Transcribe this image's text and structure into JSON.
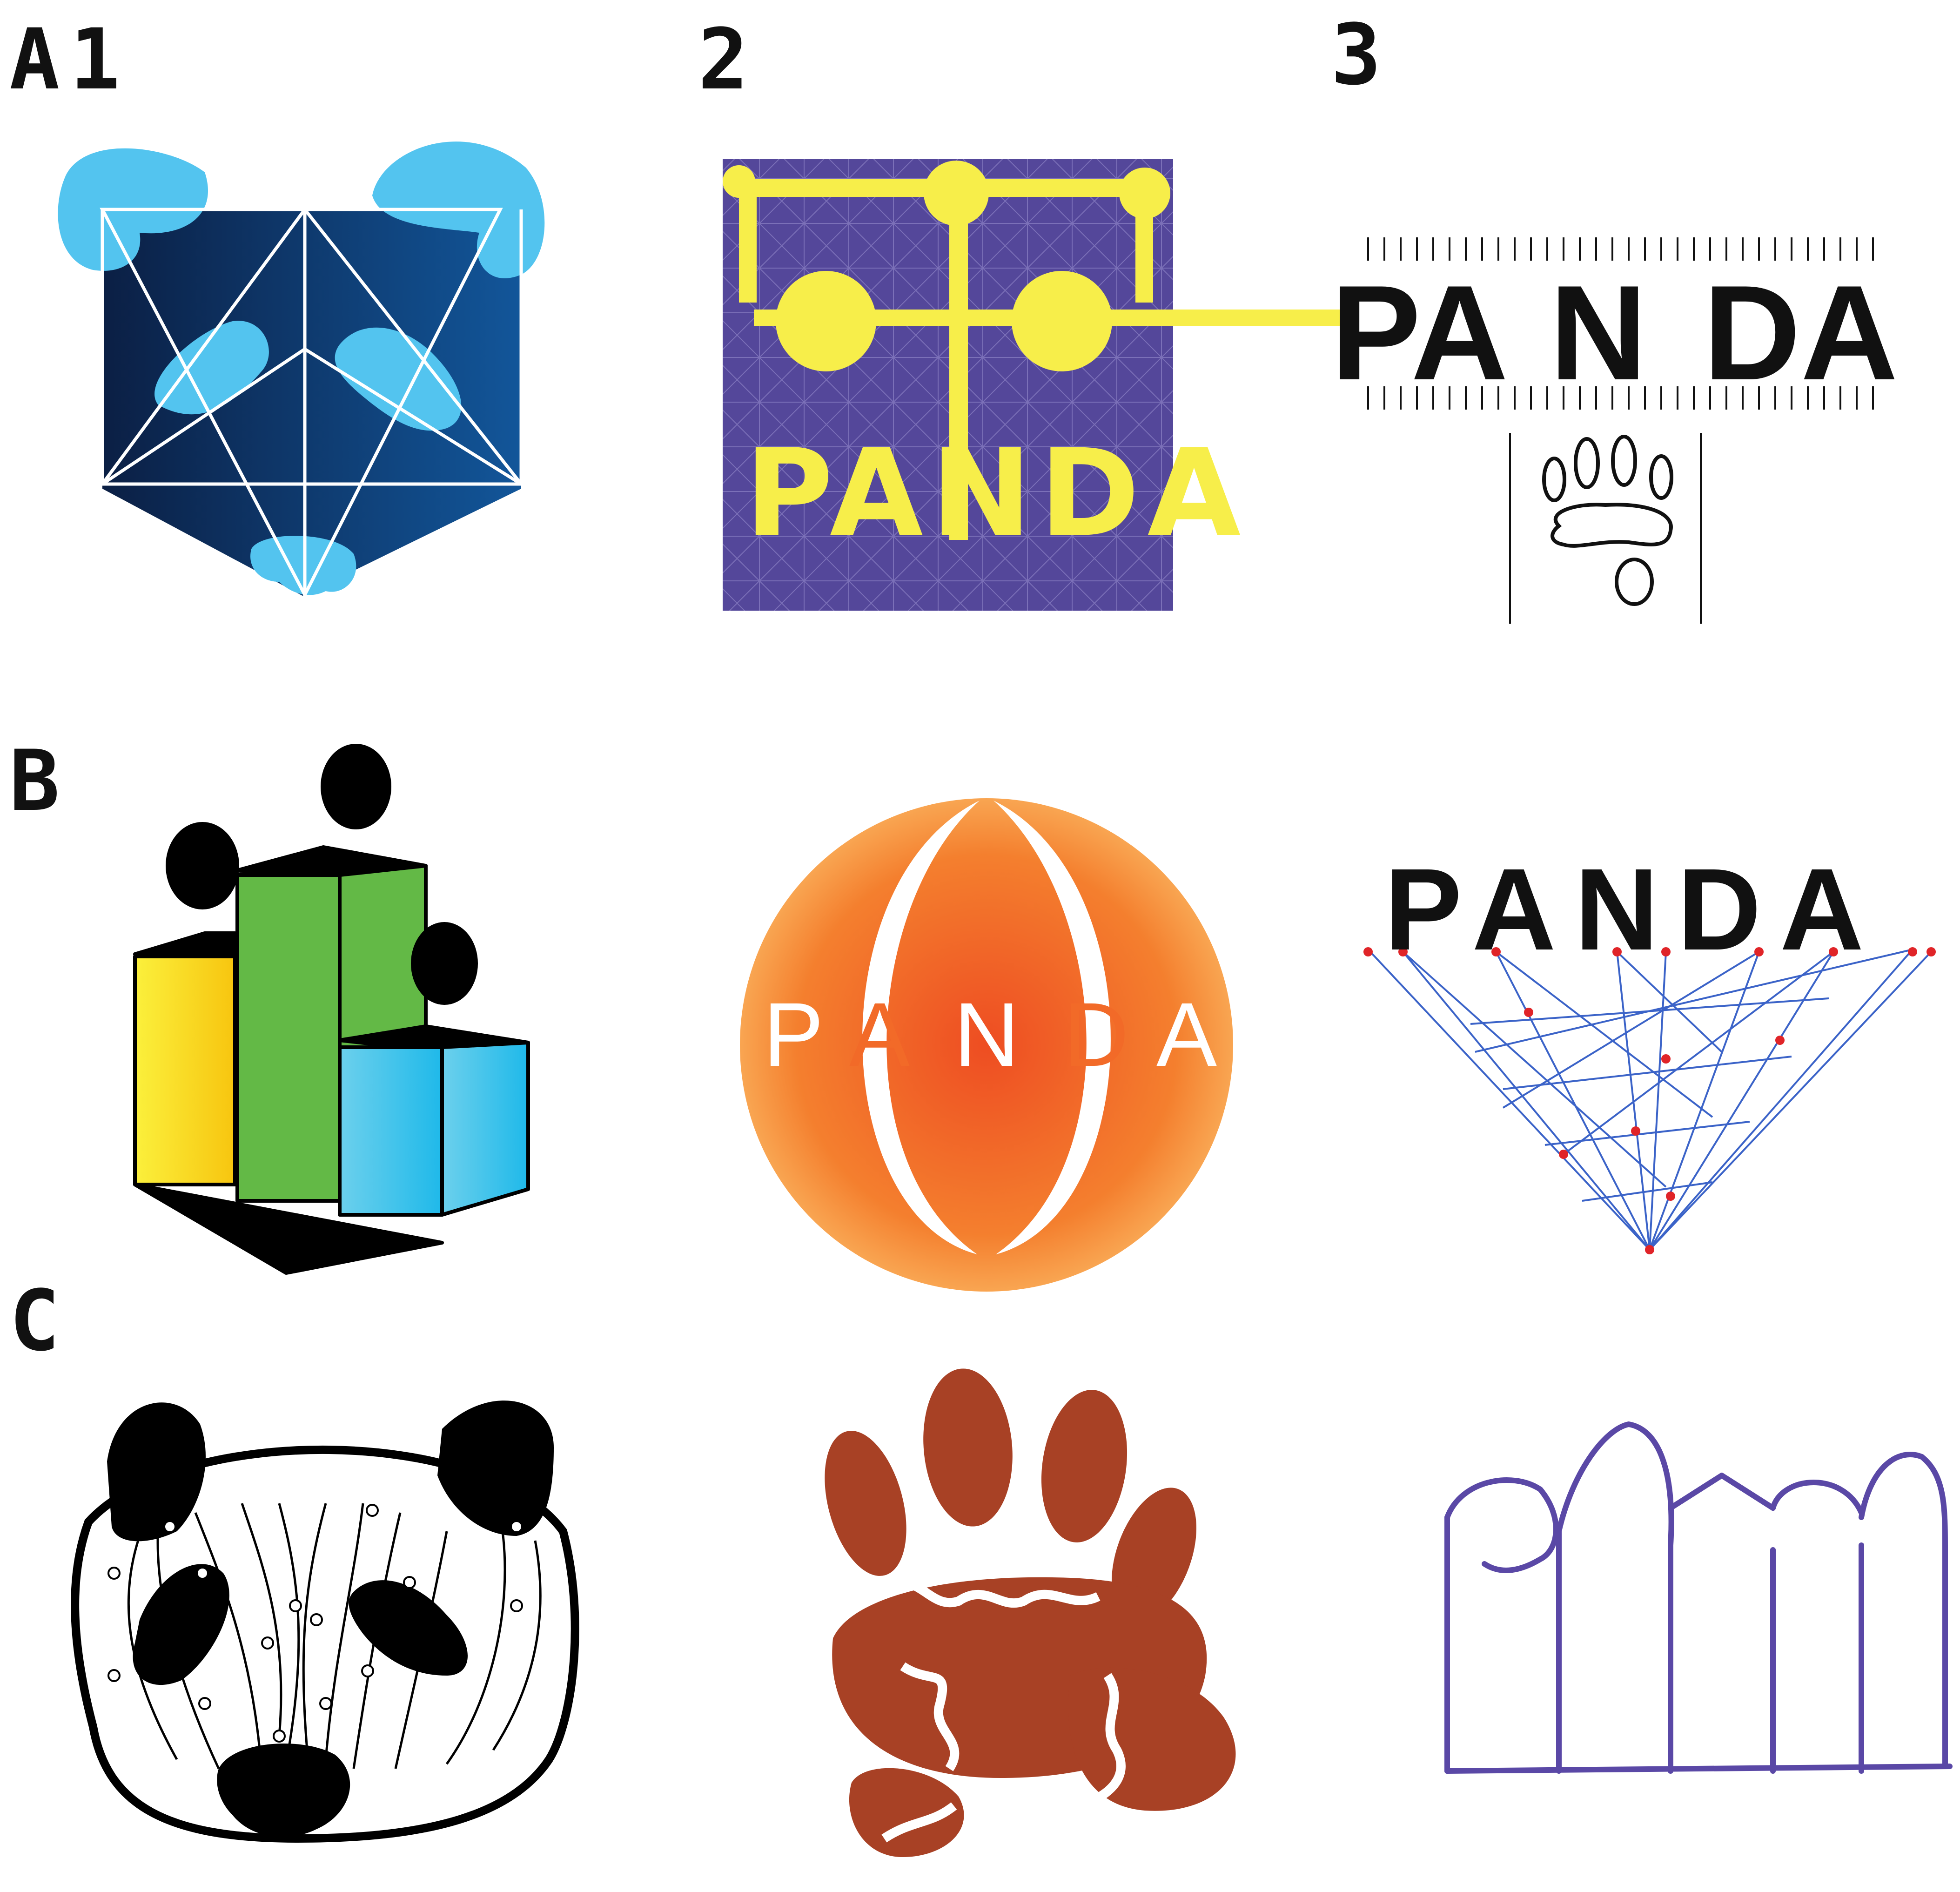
{
  "labels": {
    "row_a": "A",
    "col_1": "1",
    "col_2": "2",
    "col_3": "3",
    "row_b": "B",
    "row_c": "C"
  },
  "logos": {
    "a2_word": "PANDA",
    "a3_letters": [
      "PA",
      "N",
      "DA"
    ],
    "b2_letters": [
      "P",
      "A",
      "N",
      "D",
      "A"
    ],
    "b3_word": "PANDA"
  },
  "colors": {
    "a1_dark": "#0c2a55",
    "a1_light": "#4fc3ef",
    "a2_bg": "#54479a",
    "a2_fg": "#f7ee4a",
    "b1_yellow": "#fbe13a",
    "b1_green": "#63b946",
    "b1_blue": "#39c1e6",
    "b2_orange": "#f26a28",
    "b2_light": "#fbb661",
    "b3_line": "#3b63c8",
    "b3_dot": "#e02428",
    "c2_brown": "#a84125",
    "c3_purple": "#5a48a6"
  }
}
